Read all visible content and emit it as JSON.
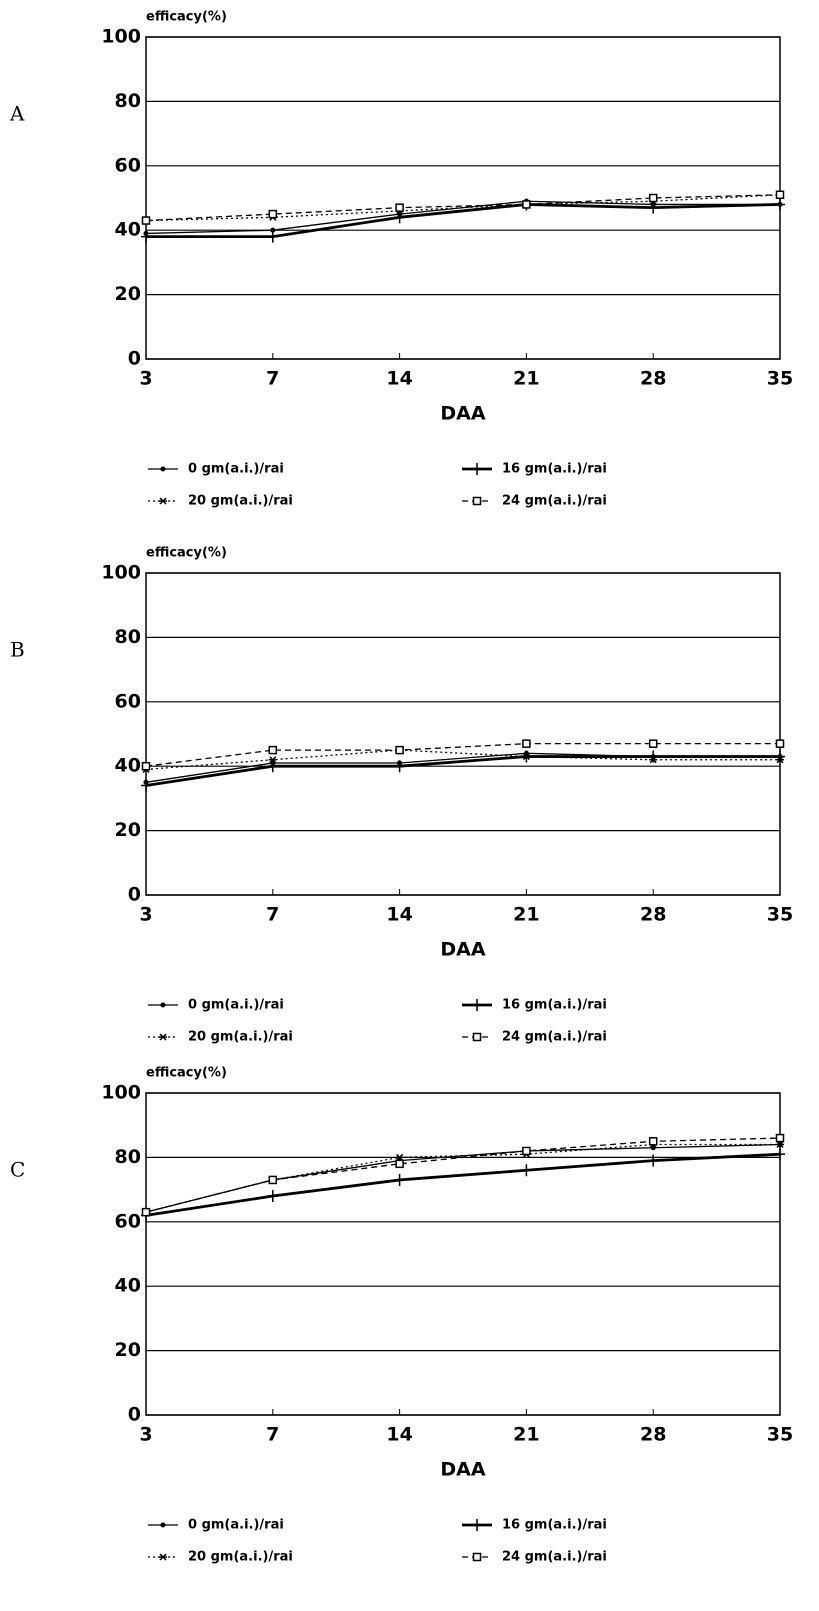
{
  "chart_data": [
    {
      "type": "line",
      "panel": "A",
      "ylabel": "efficacy(%)",
      "xlabel": "DAA",
      "categories": [
        "3",
        "7",
        "14",
        "21",
        "28",
        "35"
      ],
      "ylim": [
        0,
        100
      ],
      "yticks": [
        0,
        20,
        40,
        60,
        80,
        100
      ],
      "grid": true,
      "series": [
        {
          "name": "0 gm(a.i.)/rai",
          "color": "#000000",
          "line_style": "thin",
          "marker": "dot",
          "values": [
            39,
            40,
            45,
            49,
            48,
            48
          ]
        },
        {
          "name": "16 gm(a.i.)/rai",
          "color": "#000000",
          "line_style": "thick",
          "marker": "plus",
          "values": [
            38,
            38,
            44,
            48,
            47,
            48
          ]
        },
        {
          "name": "20 gm(a.i.)/rai",
          "color": "#000000",
          "line_style": "dotted",
          "marker": "star",
          "values": [
            43,
            44,
            46,
            48,
            49,
            51
          ]
        },
        {
          "name": "24 gm(a.i.)/rai",
          "color": "#000000",
          "line_style": "dashed",
          "marker": "square",
          "values": [
            43,
            45,
            47,
            48,
            50,
            51
          ]
        }
      ]
    },
    {
      "type": "line",
      "panel": "B",
      "ylabel": "efficacy(%)",
      "xlabel": "DAA",
      "categories": [
        "3",
        "7",
        "14",
        "21",
        "28",
        "35"
      ],
      "ylim": [
        0,
        100
      ],
      "yticks": [
        0,
        20,
        40,
        60,
        80,
        100
      ],
      "grid": true,
      "series": [
        {
          "name": "0 gm(a.i.)/rai",
          "color": "#000000",
          "line_style": "thin",
          "marker": "dot",
          "values": [
            35,
            41,
            41,
            44,
            43,
            43
          ]
        },
        {
          "name": "16 gm(a.i.)/rai",
          "color": "#000000",
          "line_style": "thick",
          "marker": "plus",
          "values": [
            34,
            40,
            40,
            43,
            43,
            43
          ]
        },
        {
          "name": "20 gm(a.i.)/rai",
          "color": "#000000",
          "line_style": "dotted",
          "marker": "star",
          "values": [
            39,
            42,
            45,
            43,
            42,
            42
          ]
        },
        {
          "name": "24 gm(a.i.)/rai",
          "color": "#000000",
          "line_style": "dashed",
          "marker": "square",
          "values": [
            40,
            45,
            45,
            47,
            47,
            47
          ]
        }
      ]
    },
    {
      "type": "line",
      "panel": "C",
      "ylabel": "efficacy(%)",
      "xlabel": "DAA",
      "categories": [
        "3",
        "7",
        "14",
        "21",
        "28",
        "35"
      ],
      "ylim": [
        0,
        100
      ],
      "yticks": [
        0,
        20,
        40,
        60,
        80,
        100
      ],
      "grid": true,
      "series": [
        {
          "name": "0 gm(a.i.)/rai",
          "color": "#000000",
          "line_style": "thin",
          "marker": "dot",
          "values": [
            63,
            73,
            79,
            82,
            83,
            84
          ]
        },
        {
          "name": "16 gm(a.i.)/rai",
          "color": "#000000",
          "line_style": "thick",
          "marker": "plus",
          "values": [
            62,
            68,
            73,
            76,
            79,
            81
          ]
        },
        {
          "name": "20 gm(a.i.)/rai",
          "color": "#000000",
          "line_style": "dotted",
          "marker": "star",
          "values": [
            63,
            73,
            80,
            81,
            84,
            84
          ]
        },
        {
          "name": "24 gm(a.i.)/rai",
          "color": "#000000",
          "line_style": "dashed",
          "marker": "square",
          "values": [
            63,
            73,
            78,
            82,
            85,
            86
          ]
        }
      ]
    }
  ]
}
